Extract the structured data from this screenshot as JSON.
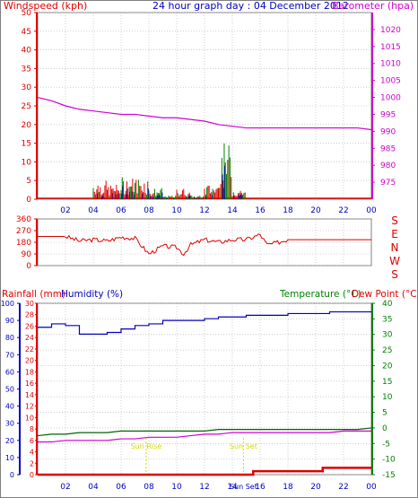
{
  "header": {
    "left": "Windspeed (kph)",
    "center": "24 hour graph day : 04 December 2012",
    "right": "Barometer (hpa)"
  },
  "colors": {
    "red": "#e00000",
    "magenta": "#d000d0",
    "blue": "#0000c0",
    "green": "#008000",
    "darkgreen": "#006400",
    "yellow": "#d8d800",
    "grid": "#b0b0b0",
    "frame": "#808080"
  },
  "x_ticks": [
    "02",
    "04",
    "06",
    "08",
    "10",
    "12",
    "14",
    "16",
    "18",
    "20",
    "22",
    "00"
  ],
  "x_ticks_bottom": [
    "02",
    "04",
    "06",
    "08",
    "10",
    "12",
    "14",
    "Sun Set",
    "16",
    "18",
    "20",
    "22",
    "00"
  ],
  "chart_data": [
    {
      "type": "line",
      "name": "windspeed-barometer",
      "ylabel_left": "Windspeed (kph)",
      "ylabel_right": "Barometer (hpa)",
      "ylim_left": [
        0,
        50
      ],
      "ylim_right": [
        970,
        1025
      ],
      "left_ticks": [
        0,
        5,
        10,
        15,
        20,
        25,
        30,
        35,
        40,
        45,
        50
      ],
      "right_ticks": [
        975,
        980,
        985,
        990,
        995,
        1000,
        1005,
        1010,
        1015,
        1020
      ],
      "x_hours": [
        0,
        1,
        2,
        3,
        4,
        5,
        6,
        7,
        8,
        9,
        10,
        11,
        12,
        13,
        14,
        15,
        16,
        17,
        18,
        19,
        20,
        21,
        22,
        23,
        24
      ],
      "barometer": [
        1000,
        999,
        997.5,
        996.5,
        996,
        995.5,
        995,
        995,
        994.5,
        994,
        994,
        993.5,
        993,
        992,
        991.5,
        991,
        991,
        991,
        991,
        991,
        991,
        991,
        991,
        991,
        990.5
      ],
      "windspeed_peak": [
        0,
        0,
        0,
        0,
        5,
        4,
        6,
        6,
        3,
        1,
        3,
        1,
        4,
        15,
        3,
        0,
        0,
        0,
        0,
        0,
        0,
        0,
        0,
        0,
        0
      ]
    },
    {
      "type": "line",
      "name": "wind-direction",
      "ylim": [
        0,
        360
      ],
      "ticks": [
        0,
        90,
        180,
        270,
        360
      ],
      "compass": [
        "S",
        "E",
        "N",
        "W",
        "S"
      ],
      "x_hours": [
        0,
        1,
        2,
        3,
        4,
        5,
        6,
        7,
        7.5,
        8,
        8.5,
        9,
        10,
        10.5,
        11,
        12,
        13,
        13.5,
        14,
        15,
        16,
        16.5,
        17,
        18,
        19,
        20,
        21,
        22,
        23,
        24
      ],
      "direction": [
        225,
        225,
        225,
        190,
        200,
        190,
        220,
        210,
        150,
        90,
        120,
        150,
        140,
        90,
        160,
        200,
        180,
        190,
        200,
        200,
        240,
        160,
        170,
        200,
        200,
        200,
        200,
        200,
        200,
        200
      ]
    },
    {
      "type": "line",
      "name": "rain-humidity-temperature",
      "label_rain": "Rainfall (mm)",
      "label_humidity": "Humidity (%)",
      "label_temp": "Temperature (°C)",
      "label_dew": "Dew Point (°C)",
      "rain_ticks": [
        0,
        2,
        4,
        6,
        8,
        10,
        12,
        14,
        16,
        18,
        20,
        22,
        24,
        26,
        28,
        30
      ],
      "humidity_ticks": [
        0,
        10,
        20,
        30,
        40,
        50,
        60,
        70,
        80,
        90,
        100
      ],
      "temp_ticks": [
        -15,
        -10,
        -5,
        0,
        5,
        10,
        15,
        20,
        25,
        30,
        35,
        40
      ],
      "ylim_temp": [
        -15,
        40
      ],
      "x_hours": [
        0,
        1,
        2,
        3,
        4,
        5,
        6,
        7,
        8,
        9,
        10,
        11,
        12,
        13,
        14,
        15,
        16,
        17,
        18,
        19,
        20,
        21,
        22,
        23,
        24
      ],
      "humidity": [
        86,
        88,
        87,
        82,
        82,
        83,
        85,
        87,
        88,
        90,
        90,
        90,
        91,
        92,
        92,
        93,
        93,
        93,
        94,
        94,
        94,
        95,
        95,
        95,
        95
      ],
      "temperature": [
        -2.5,
        -2,
        -2,
        -1.5,
        -1.5,
        -1.5,
        -1,
        -1,
        -1,
        -1,
        -1,
        -1,
        -1,
        -0.5,
        -0.5,
        -0.5,
        -0.5,
        -0.5,
        -0.5,
        -0.5,
        -0.5,
        -0.5,
        -0.5,
        -0.5,
        0
      ],
      "dewpoint": [
        -4.5,
        -4.5,
        -4,
        -4,
        -4,
        -4,
        -3.5,
        -3.5,
        -3,
        -3,
        -3,
        -2.5,
        -2,
        -2,
        -1.5,
        -1.5,
        -1.5,
        -1.5,
        -1.5,
        -1.5,
        -1.5,
        -1.5,
        -1,
        -1,
        -1
      ],
      "rain_x": [
        0,
        15,
        15.5,
        20,
        20.5,
        24
      ],
      "rain": [
        0,
        0,
        0.6,
        0.6,
        1.2,
        1.2
      ],
      "sunrise_label": "Sun Rise",
      "sunrise_hour": 7.8,
      "sunset_label": "Sun Set",
      "sunset_hour": 14.8
    }
  ]
}
